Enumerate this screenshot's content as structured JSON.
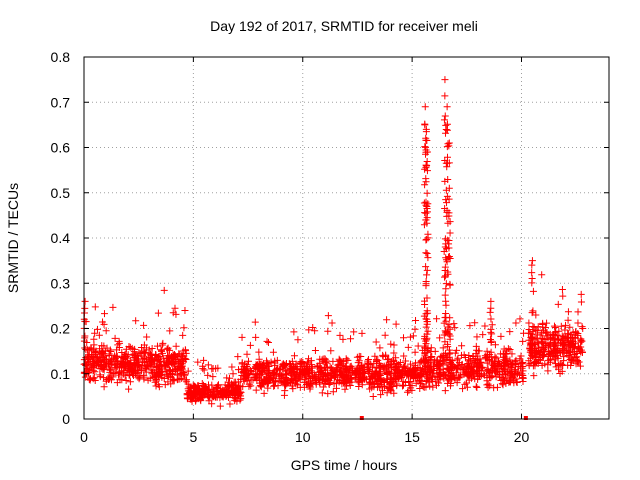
{
  "chart_data": {
    "type": "scatter",
    "title": "Day 192 of 2017, SRMTID for receiver meli",
    "xlabel": "GPS time / hours",
    "ylabel": "SRMTID / TECUs",
    "xlim": [
      0,
      24
    ],
    "ylim": [
      0,
      0.8
    ],
    "xticks": [
      0,
      5,
      10,
      15,
      20
    ],
    "xtick_labels": [
      "0",
      "5",
      "10",
      "15",
      "20"
    ],
    "yticks": [
      0,
      0.1,
      0.2,
      0.3,
      0.4,
      0.5,
      0.6,
      0.7,
      0.8
    ],
    "ytick_labels": [
      "0",
      "0.1",
      "0.2",
      "0.3",
      "0.4",
      "0.5",
      "0.6",
      "0.7",
      "0.8"
    ],
    "grid": true,
    "marker": "+",
    "marker_color": "#ff0000",
    "series": [
      {
        "name": "SRMTID",
        "segments": [
          {
            "x_start": 0.0,
            "x_end": 4.7,
            "baseline": 0.12,
            "spread": 0.05,
            "count": 520
          },
          {
            "x_start": 4.7,
            "x_end": 7.2,
            "baseline": 0.06,
            "spread": 0.025,
            "count": 260
          },
          {
            "x_start": 7.2,
            "x_end": 12.7,
            "baseline": 0.1,
            "spread": 0.04,
            "count": 540
          },
          {
            "x_start": 12.7,
            "x_end": 15.5,
            "baseline": 0.1,
            "spread": 0.045,
            "count": 300
          },
          {
            "x_start": 15.5,
            "x_end": 20.1,
            "baseline": 0.11,
            "spread": 0.045,
            "count": 460
          },
          {
            "x_start": 20.3,
            "x_end": 22.8,
            "baseline": 0.16,
            "spread": 0.06,
            "count": 300
          }
        ],
        "peaks": [
          {
            "x": 15.6,
            "y": 0.69
          },
          {
            "x": 15.65,
            "y": 0.64
          },
          {
            "x": 15.7,
            "y": 0.59
          },
          {
            "x": 16.5,
            "y": 0.75
          },
          {
            "x": 16.6,
            "y": 0.69
          },
          {
            "x": 16.7,
            "y": 0.61
          },
          {
            "x": 20.5,
            "y": 0.35
          },
          {
            "x": 0.05,
            "y": 0.26
          },
          {
            "x": 18.6,
            "y": 0.26
          }
        ],
        "gap_markers": [
          {
            "x": 12.7,
            "y": 0.0
          },
          {
            "x": 20.2,
            "y": 0.0
          }
        ]
      }
    ]
  }
}
